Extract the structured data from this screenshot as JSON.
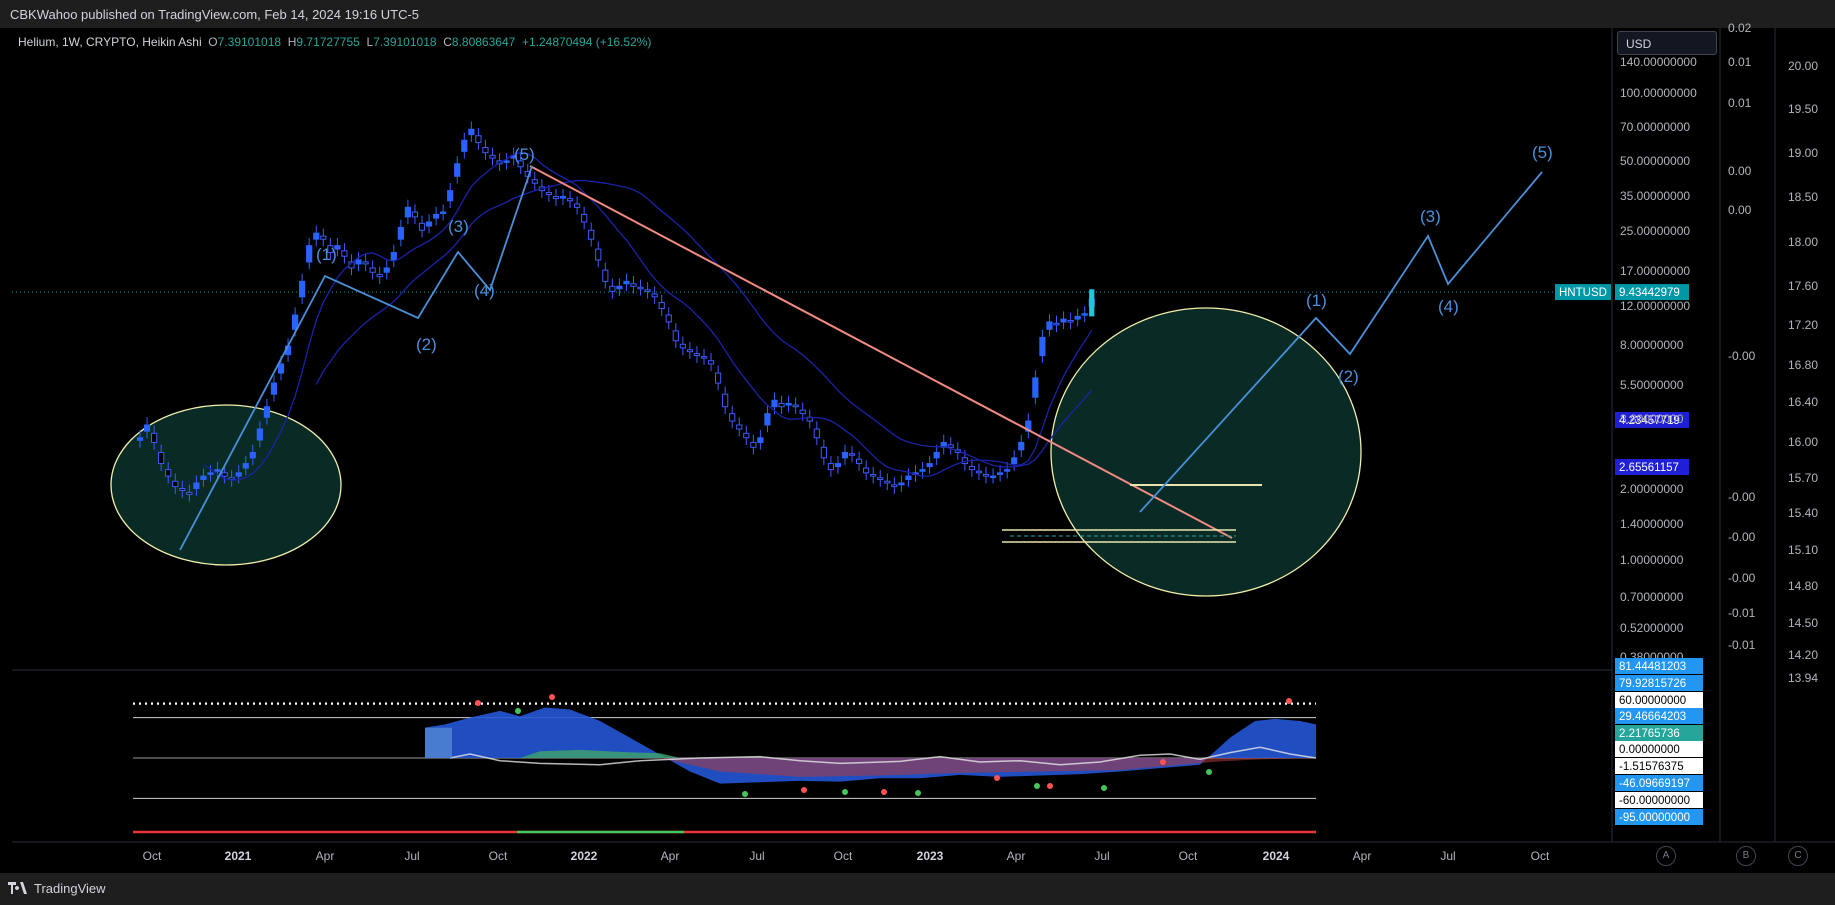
{
  "header": {
    "published_by": "CBKWahoo published on TradingView.com, Feb 14, 2024 19:16 UTC-5"
  },
  "legend": {
    "symbol": "Helium, 1W, CRYPTO, Heikin Ashi",
    "open_label": "O",
    "open": "7.39101018",
    "high_label": "H",
    "high": "9.71727755",
    "low_label": "L",
    "low": "7.39101018",
    "close_label": "C",
    "close": "8.80863647",
    "change": "+1.24870494 (+16.52%)"
  },
  "currency_button": "USD",
  "footer": {
    "brand": "TradingView"
  },
  "scale_buttons": [
    "A",
    "B",
    "C"
  ],
  "colors": {
    "up": "#2962ff",
    "down": "#3d5afe",
    "wave": "#4a90d9",
    "trend": "#f28b82",
    "ellipse_fill": "#0a2a25",
    "ellipse_stroke": "#f2efaa",
    "price_tag": "#0097a7",
    "ma": "#1a23a8"
  },
  "chart_data": [
    {
      "type": "candlestick",
      "title": "Helium, 1W, CRYPTO, Heikin Ashi",
      "price_scale": "log",
      "last_price": {
        "symbol": "HNTUSD",
        "value": "9.43442979"
      },
      "ma_tags": [
        "4.23457719",
        "2.65561157"
      ],
      "x_ticks": [
        "Oct",
        "2021",
        "Apr",
        "Jul",
        "Oct",
        "2022",
        "Apr",
        "Jul",
        "Oct",
        "2023",
        "Apr",
        "Jul",
        "Oct",
        "2024",
        "Apr",
        "Jul",
        "Oct"
      ],
      "y_ticks_main": [
        "140.00000000",
        "100.00000000",
        "70.00000000",
        "50.00000000",
        "35.00000000",
        "25.00000000",
        "17.00000000",
        "12.00000000",
        "8.00000000",
        "5.50000000",
        "3.80000000",
        "2.00000000",
        "1.40000000",
        "1.00000000",
        "0.70000000",
        "0.52000000",
        "0.38000000"
      ],
      "y_ticks_mid": [
        "0.02",
        "0.01",
        "0.01",
        "0.00",
        "0.00",
        "-0.00",
        "-0.00",
        "-0.00",
        "-0.00",
        "-0.01",
        "-0.01"
      ],
      "y_ticks_right": [
        "20.00",
        "19.50",
        "19.00",
        "18.50",
        "18.00",
        "17.60",
        "17.20",
        "16.80",
        "16.40",
        "16.00",
        "15.70",
        "15.40",
        "15.10",
        "14.80",
        "14.50",
        "14.20",
        "13.94"
      ],
      "wave_labels": [
        "(1)",
        "(2)",
        "(3)",
        "(4)",
        "(5)",
        "(1)",
        "(2)",
        "(3)",
        "(4)",
        "(5)"
      ],
      "candles_weekly_close": [
        2.2,
        2.5,
        2.1,
        1.7,
        1.5,
        1.35,
        1.3,
        1.25,
        1.4,
        1.5,
        1.55,
        1.6,
        1.5,
        1.45,
        1.55,
        1.7,
        1.9,
        2.4,
        3.0,
        3.8,
        4.6,
        5.5,
        7.5,
        10.5,
        15.0,
        17.0,
        16.0,
        14.0,
        15.0,
        13.5,
        12.0,
        13.0,
        12.5,
        11.5,
        11.0,
        12.0,
        14.0,
        18.0,
        22.0,
        20.0,
        17.5,
        19.0,
        20.5,
        21.0,
        26.0,
        34.0,
        43.0,
        48.0,
        42.0,
        38.0,
        36.0,
        34.0,
        35.0,
        37.0,
        33.0,
        30.0,
        28.0,
        26.0,
        25.0,
        24.0,
        24.5,
        23.5,
        22.0,
        19.0,
        16.0,
        13.0,
        10.5,
        9.5,
        10.0,
        10.5,
        10.0,
        9.8,
        9.5,
        9.0,
        8.0,
        7.0,
        5.8,
        5.4,
        5.2,
        5.0,
        4.9,
        4.6,
        3.8,
        3.0,
        2.6,
        2.4,
        2.2,
        2.0,
        2.2,
        2.8,
        3.2,
        3.0,
        3.1,
        3.0,
        2.8,
        2.6,
        2.2,
        1.8,
        1.6,
        1.7,
        1.9,
        1.85,
        1.7,
        1.55,
        1.5,
        1.45,
        1.4,
        1.35,
        1.4,
        1.5,
        1.55,
        1.6,
        1.7,
        1.9,
        2.1,
        2.0,
        1.9,
        1.7,
        1.6,
        1.55,
        1.5,
        1.5,
        1.55,
        1.6,
        1.8,
        2.1,
        2.6,
        4.0,
        6.0,
        7.0,
        6.8,
        7.2,
        7.0,
        7.4,
        7.6,
        8.8
      ]
    },
    {
      "type": "area",
      "title": "",
      "y_tags": [
        "81.44481203",
        "79.92815726",
        "60.00000000",
        "29.46664203",
        "2.21765736",
        "0.00000000",
        "-1.51576375",
        "-46.09669197",
        "-60.00000000",
        "-95.00000000"
      ],
      "levels": [
        81.4,
        60,
        0,
        -60,
        -95
      ]
    }
  ]
}
